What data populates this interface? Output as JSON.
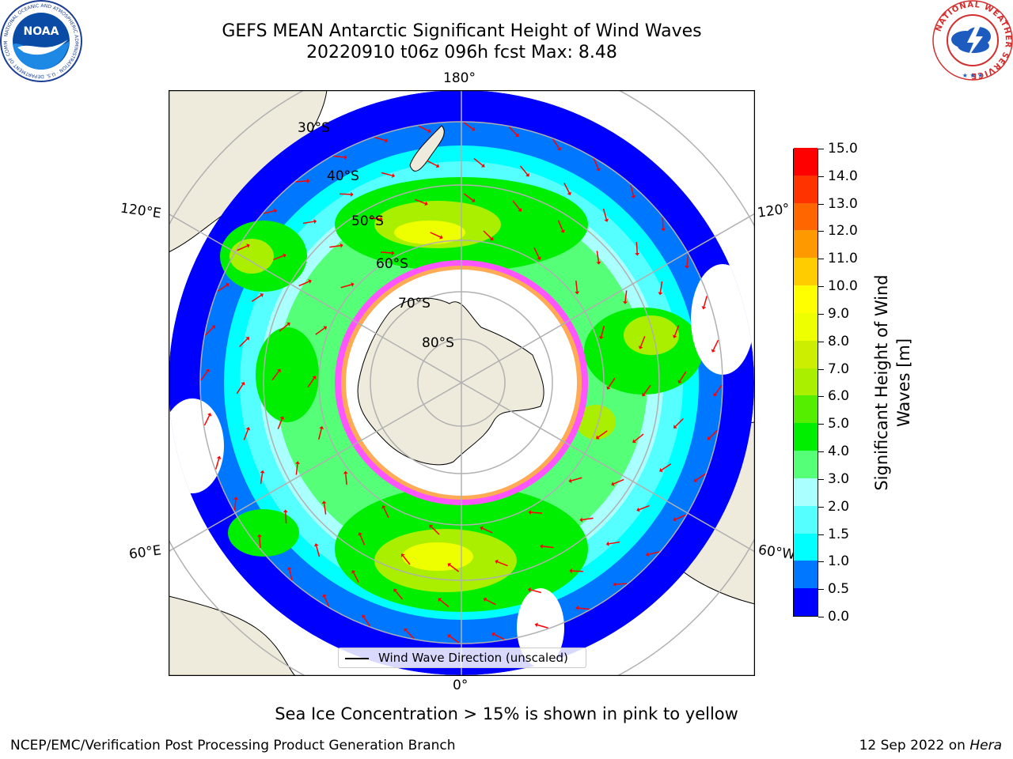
{
  "header": {
    "title_line1": "GEFS MEAN Antarctic Significant Height of Wind Waves",
    "title_line2": "20220910 t06z 096h fcst   Max: 8.48"
  },
  "logos": {
    "noaa_text": "NOAA",
    "noaa_ring_text": "NATIONAL OCEANIC AND ATMOSPHERIC ADMINISTRATION · U.S. DEPARTMENT OF COMMERCE",
    "nws_ring_text": "NATIONAL WEATHER SERVICE"
  },
  "map": {
    "projection": "south-polar-stereographic",
    "longitude_labels": {
      "top": "180°",
      "bottom": "0°",
      "left_upper": "120°E",
      "left_lower": "60°E",
      "right_upper": "120°",
      "right_lower": "60°W"
    },
    "latitude_labels": [
      "30°S",
      "40°S",
      "50°S",
      "60°S",
      "70°S",
      "80°S"
    ],
    "land_color": "#efebdc",
    "ice_colors": [
      "#ff55ff",
      "#ffaa55",
      "#ffd966"
    ],
    "arrow_color": "#ff0000",
    "max_wave_height": 8.48
  },
  "colorbar": {
    "title": "Significant Height of Wind Waves [m]",
    "title_line1": "Significant Height of Wind",
    "title_line2": "Waves [m]",
    "tick_labels": [
      "0.0",
      "0.5",
      "1.0",
      "1.5",
      "2.0",
      "3.0",
      "4.0",
      "5.0",
      "6.0",
      "7.0",
      "8.0",
      "9.0",
      "10.0",
      "11.0",
      "12.0",
      "13.0",
      "14.0",
      "15.0"
    ],
    "colors": [
      "#0000ff",
      "#0077ff",
      "#00ffff",
      "#55ffff",
      "#aaffff",
      "#55ff77",
      "#00ee00",
      "#55ee00",
      "#aaee00",
      "#ccee00",
      "#eeff00",
      "#ffff00",
      "#ffcc00",
      "#ff9900",
      "#ff6600",
      "#ff3300",
      "#ff0000"
    ]
  },
  "legend": {
    "label": "Wind Wave Direction (unscaled)"
  },
  "caption": "Sea Ice Concentration > 15% is shown in pink to yellow",
  "footer": {
    "left": "NCEP/EMC/Verification Post Processing Product Generation Branch",
    "date": "12 Sep 2022 on ",
    "machine": "Hera"
  }
}
